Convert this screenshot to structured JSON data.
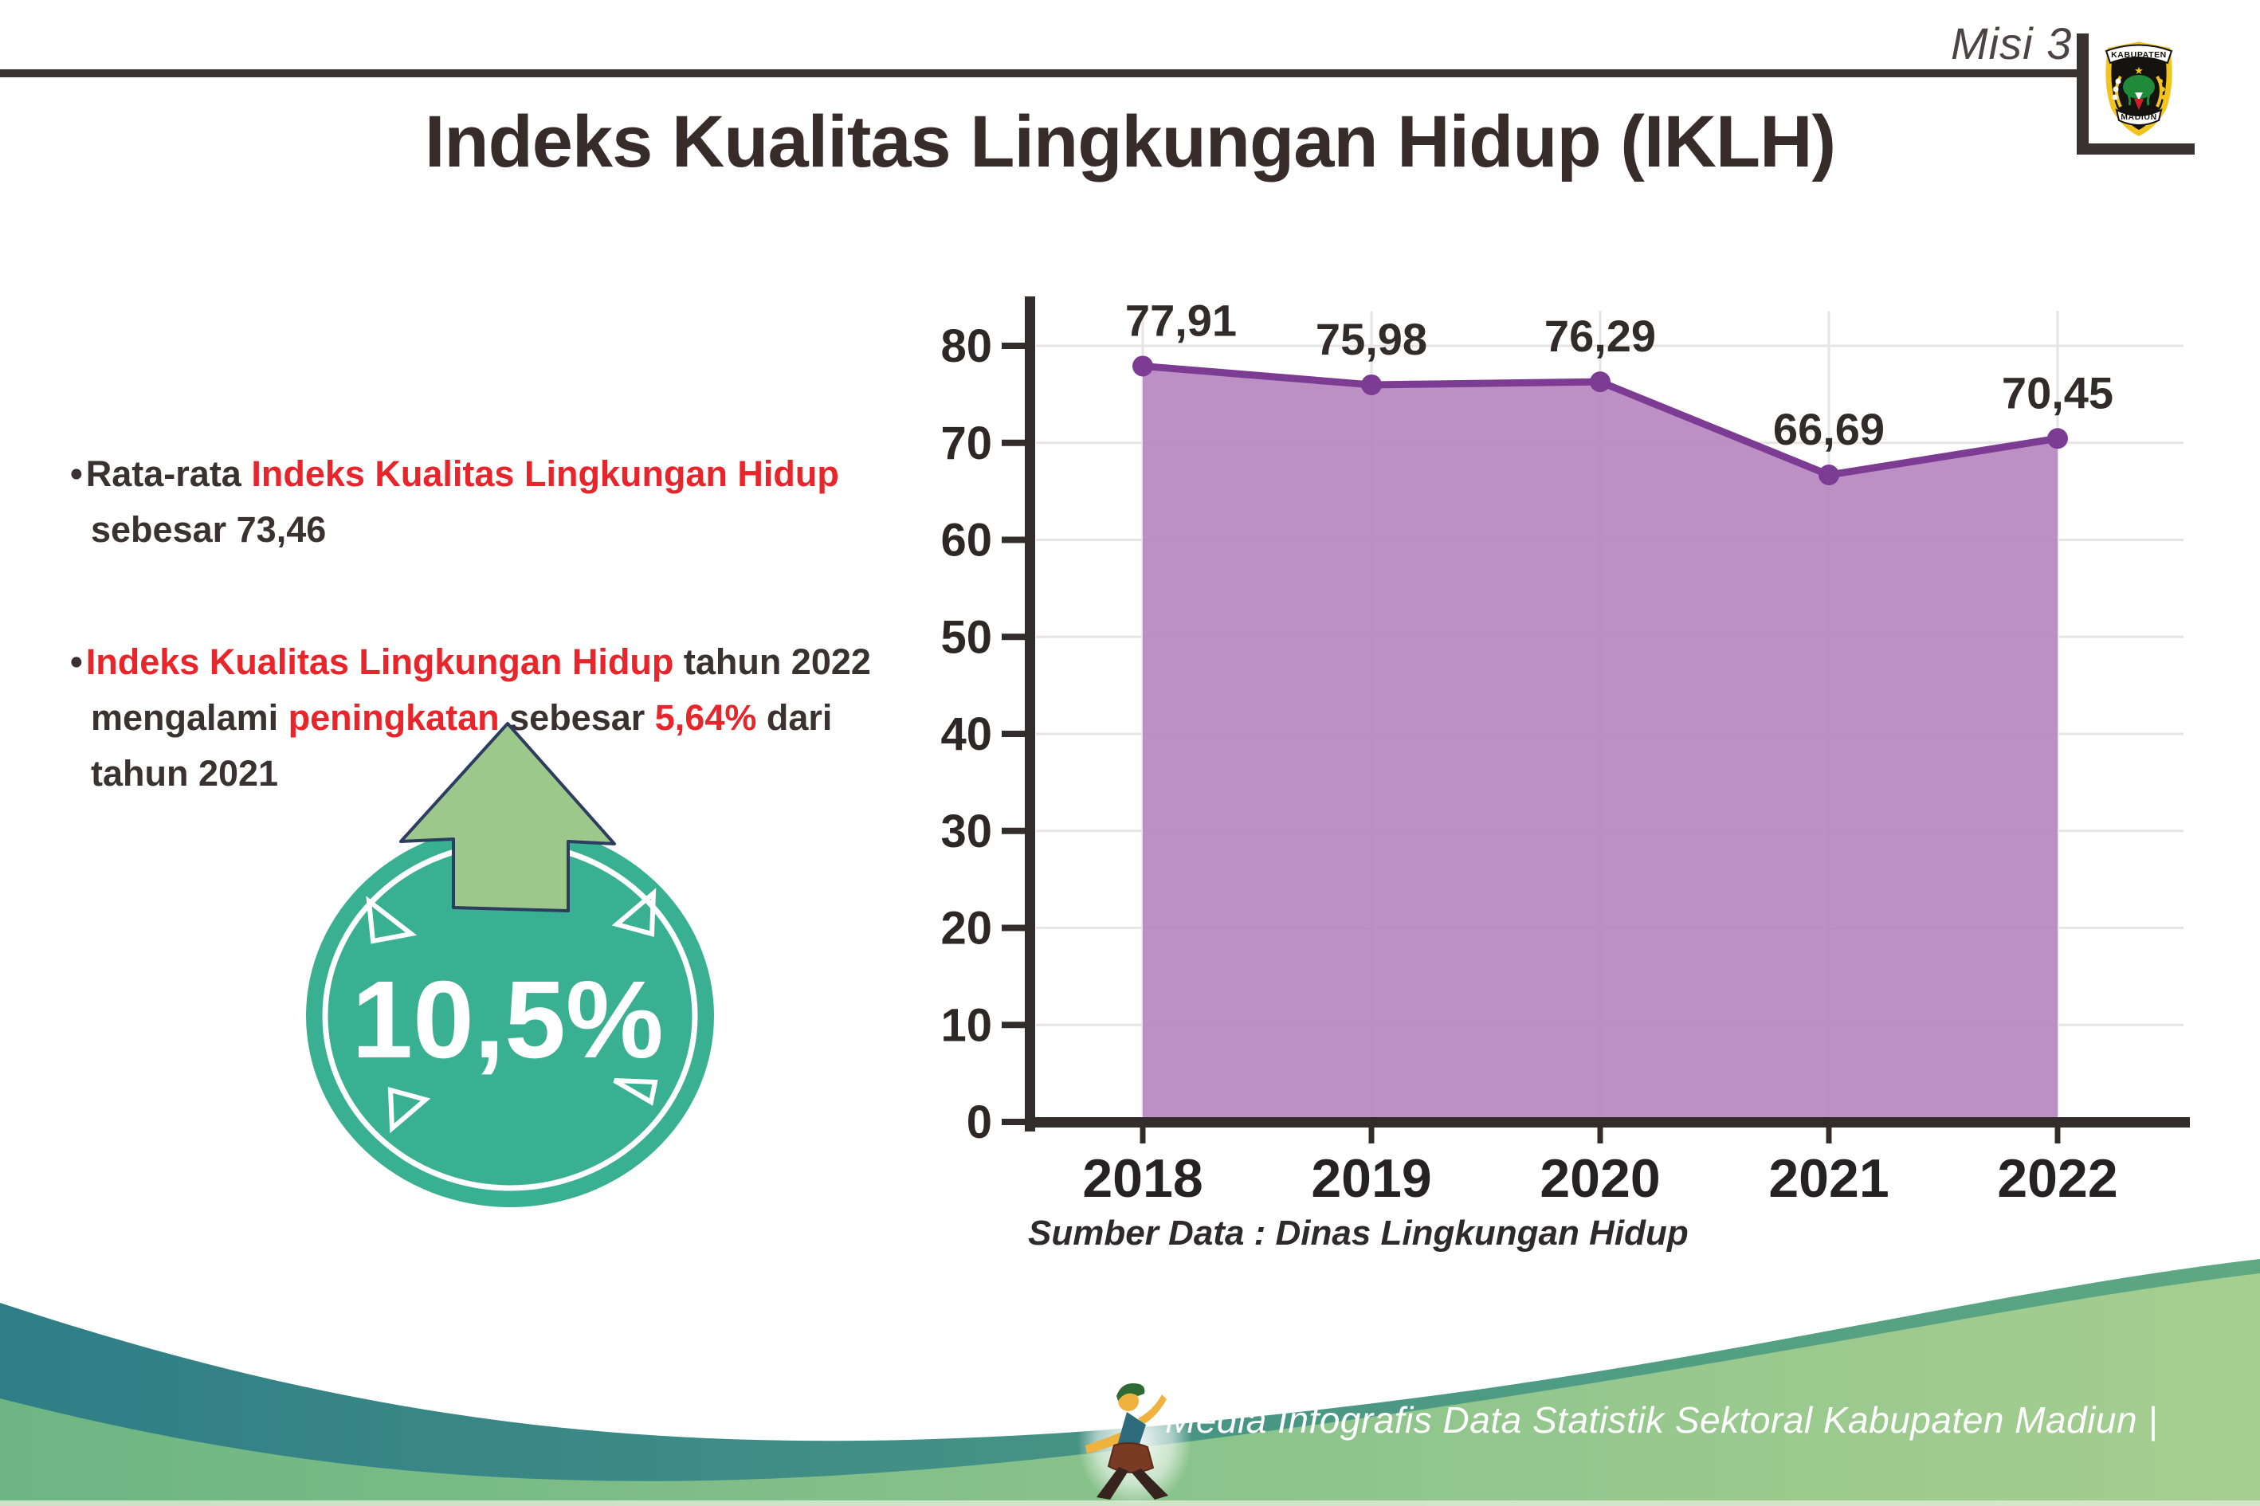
{
  "header": {
    "misi_label": "Misi 3",
    "title": "Indeks Kualitas Lingkungan Hidup (IKLH)",
    "logo_top": "KABUPATEN",
    "logo_bottom": "MADIUN"
  },
  "bullets": [
    {
      "lines": [
        [
          {
            "t": "Rata-rata ",
            "s": "dark"
          },
          {
            "t": "Indeks Kualitas Lingkungan Hidup",
            "s": "red"
          }
        ],
        [
          {
            "t": "sebesar 73,46",
            "s": "dark"
          }
        ]
      ]
    },
    {
      "lines": [
        [
          {
            "t": "Indeks Kualitas Lingkungan Hidup",
            "s": "red"
          },
          {
            "t": " tahun 2022",
            "s": "dark"
          }
        ],
        [
          {
            "t": "mengalami ",
            "s": "dark"
          },
          {
            "t": "peningkatan",
            "s": "red"
          },
          {
            "t": " sebesar ",
            "s": "dark"
          },
          {
            "t": "5,64%",
            "s": "red"
          },
          {
            "t": " dari",
            "s": "dark"
          }
        ],
        [
          {
            "t": "tahun 2021",
            "s": "dark"
          }
        ]
      ]
    }
  ],
  "badge": {
    "value": "10,5%",
    "meaning": "peningkatan"
  },
  "chart_data": {
    "type": "area",
    "categories": [
      "2018",
      "2019",
      "2020",
      "2021",
      "2022"
    ],
    "series": [
      {
        "name": "IKLH",
        "values": [
          77.91,
          75.98,
          76.29,
          66.69,
          70.45
        ]
      }
    ],
    "value_labels": [
      "77,91",
      "75,98",
      "76,29",
      "66,69",
      "70,45"
    ],
    "ylim": [
      0,
      80
    ],
    "ytick_step": 10,
    "grid": true,
    "legend_position": "none",
    "source_note": "Sumber Data : Dinas Lingkungan Hidup"
  },
  "footer": {
    "credit": "Media Infografis Data Statistik Sektoral Kabupaten Madiun |"
  },
  "colors": {
    "accent_red": "#e8252b",
    "text_dark": "#3a3133",
    "rule_dark": "#3a3231",
    "chart_line": "#7d3c94",
    "chart_fill": "#b787c0",
    "badge_teal": "#3ab093",
    "badge_arrow_green": "#9cc98b",
    "badge_arrow_outline": "#2d3d60",
    "footer_teal": "#2f7e87",
    "footer_teal2": "#5ea982",
    "footer_green": "#6db583",
    "footer_green2": "#a6ce90",
    "logo_yellow": "#f2c41d",
    "logo_green": "#1e8a3a"
  }
}
